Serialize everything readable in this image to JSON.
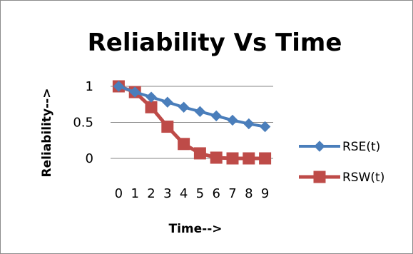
{
  "chart_data": {
    "type": "line",
    "title": "Reliability Vs Time",
    "xlabel": "Time-->",
    "ylabel": "Reliability-->",
    "x": [
      0,
      1,
      2,
      3,
      4,
      5,
      6,
      7,
      8,
      9
    ],
    "ylim": [
      0,
      1
    ],
    "yticks": [
      "0",
      "0.5",
      "1"
    ],
    "grid": true,
    "legend": "right",
    "series": [
      {
        "name": "RSE(t)",
        "color": "#4a7ebb",
        "marker": "diamond",
        "values": [
          1.0,
          0.92,
          0.85,
          0.78,
          0.71,
          0.65,
          0.59,
          0.53,
          0.48,
          0.44
        ]
      },
      {
        "name": "RSW(t)",
        "color": "#be4b48",
        "marker": "square",
        "values": [
          1.0,
          0.92,
          0.71,
          0.44,
          0.2,
          0.07,
          0.01,
          0.0,
          0.0,
          0.0
        ]
      }
    ]
  }
}
